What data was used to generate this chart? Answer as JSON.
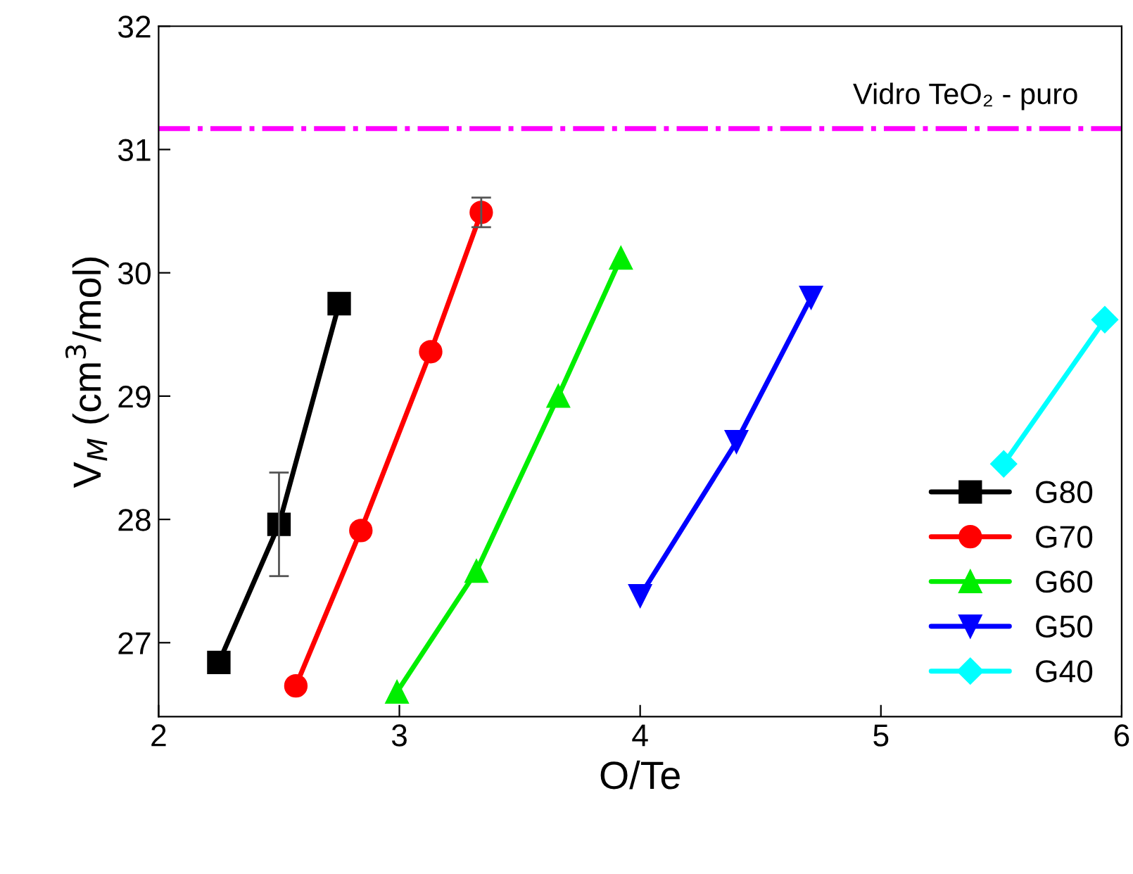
{
  "chart_data": {
    "type": "line",
    "xlabel": "O/Te",
    "ylabel": "V$_{M}$ (cm$^{3}$/mol)",
    "xlim": [
      2,
      6
    ],
    "ylim": [
      26.4,
      32
    ],
    "xticks": [
      2,
      3,
      4,
      5,
      6
    ],
    "yticks": [
      27,
      28,
      29,
      30,
      31,
      32
    ],
    "grid": false,
    "legend": "bottom right",
    "series": [
      {
        "name": "G80",
        "color": "#000000",
        "marker": "square",
        "x": [
          2.25,
          2.5,
          2.75
        ],
        "values": [
          26.84,
          27.96,
          29.75
        ],
        "errors": [
          null,
          0.42,
          null
        ]
      },
      {
        "name": "G70",
        "color": "#ff0000",
        "marker": "circle",
        "x": [
          2.57,
          2.84,
          3.13,
          3.34
        ],
        "values": [
          26.65,
          27.91,
          29.36,
          30.49
        ],
        "errors": [
          null,
          null,
          null,
          0.12
        ]
      },
      {
        "name": "G60",
        "color": "#00ee00",
        "marker": "triangle",
        "x": [
          2.99,
          3.32,
          3.66,
          3.92
        ],
        "values": [
          26.6,
          27.58,
          29.0,
          30.12
        ]
      },
      {
        "name": "G50",
        "color": "#0000ff",
        "marker": "triangle_down",
        "x": [
          4.0,
          4.4,
          4.71
        ],
        "values": [
          27.38,
          28.63,
          29.8
        ]
      },
      {
        "name": "G40",
        "color": "#00ffff",
        "marker": "diamond",
        "x": [
          5.51,
          5.93
        ],
        "values": [
          28.45,
          29.62
        ]
      }
    ],
    "ref_lines": [
      {
        "axis": "y",
        "value": 31.17,
        "label": "Vidro TeO₂ - puro",
        "color": "#ff00ff",
        "line_style": "dashdot"
      }
    ]
  }
}
